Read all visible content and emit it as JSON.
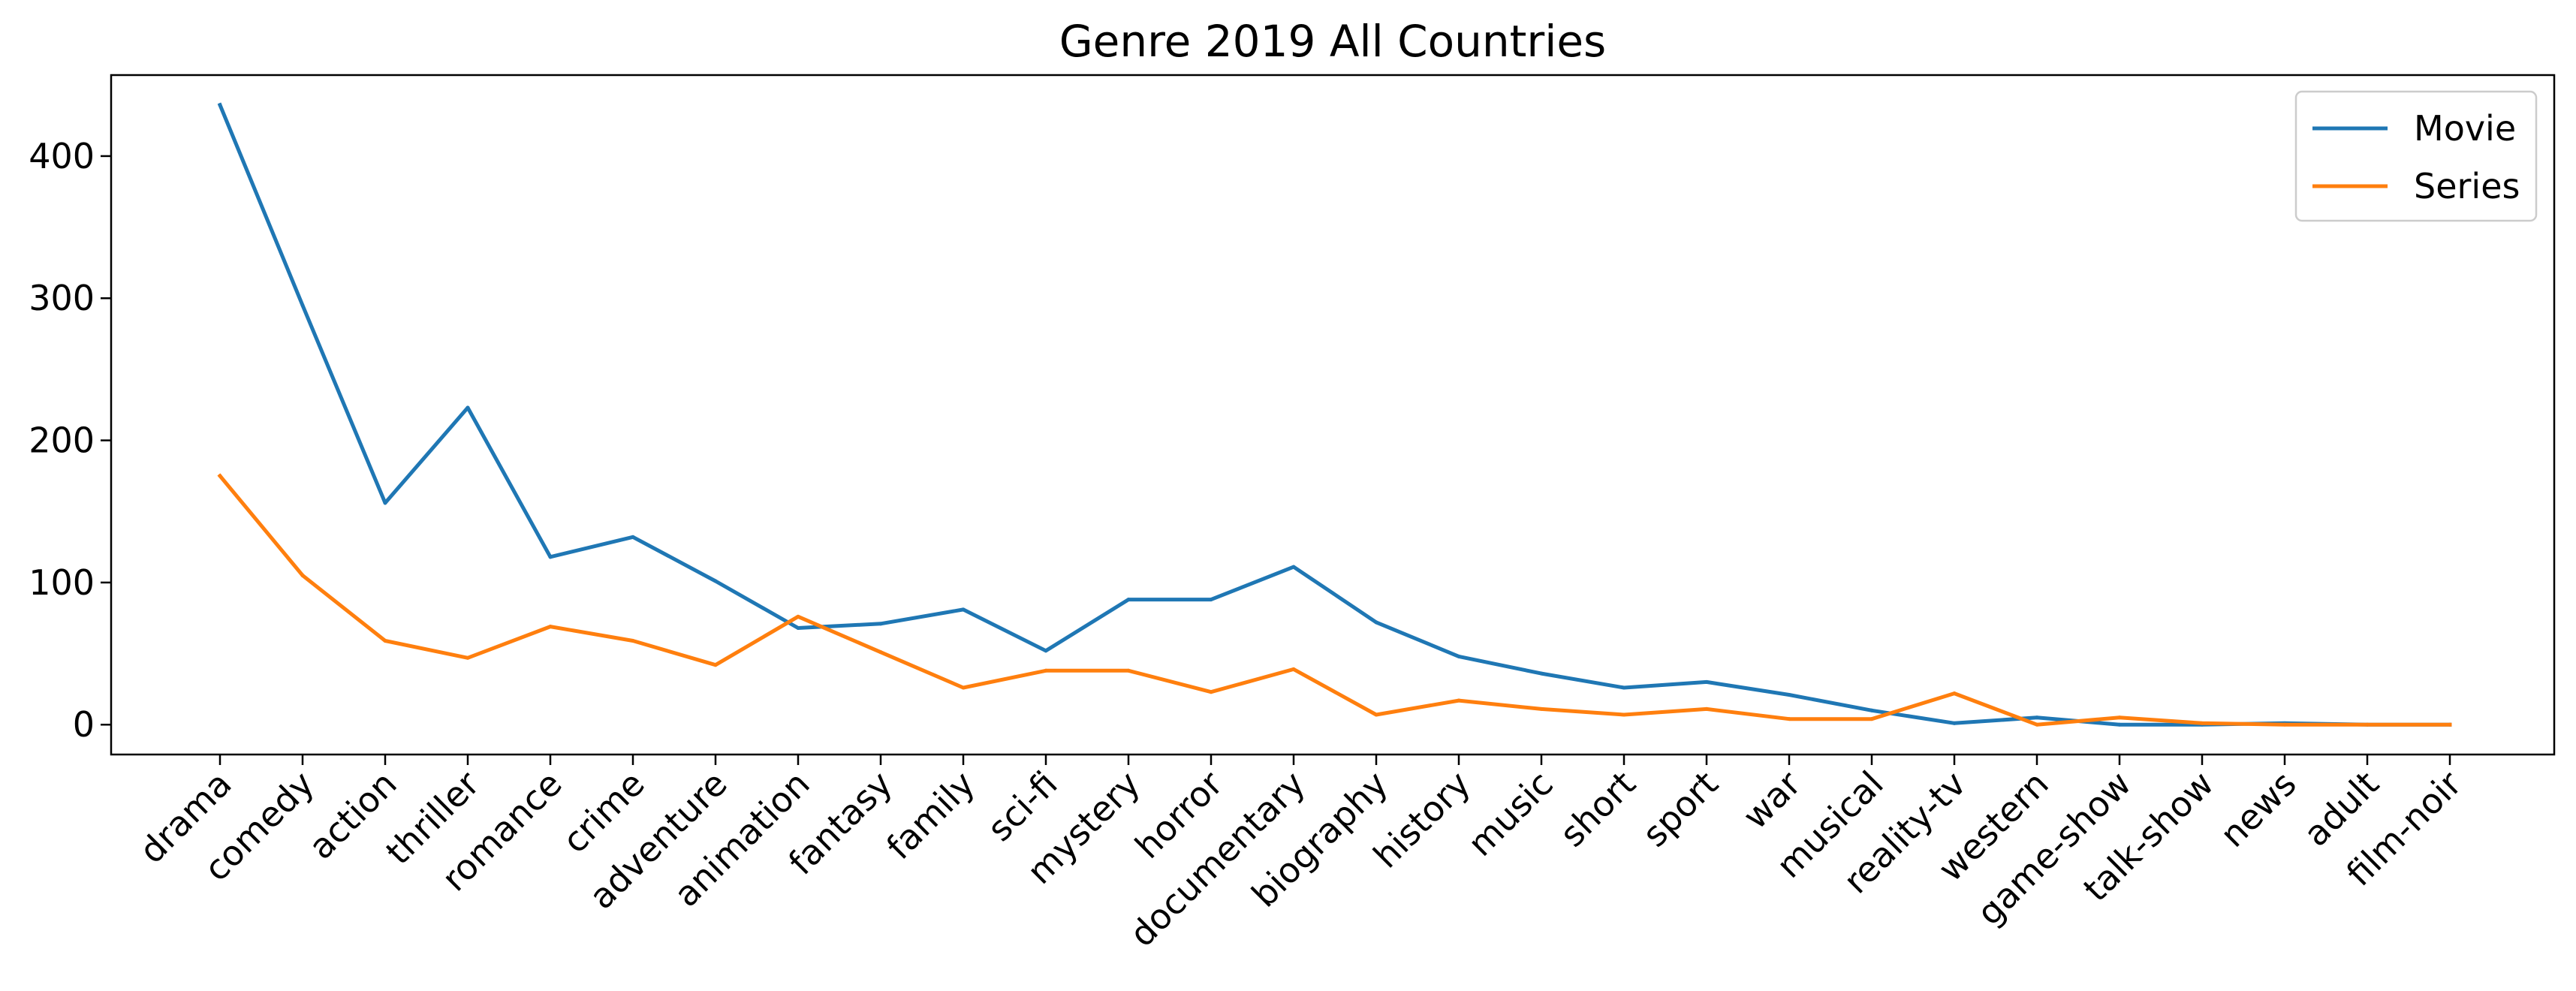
{
  "chart_data": {
    "type": "line",
    "title": "Genre 2019 All Countries",
    "xlabel": "",
    "ylabel": "",
    "categories": [
      "drama",
      "comedy",
      "action",
      "thriller",
      "romance",
      "crime",
      "adventure",
      "animation",
      "fantasy",
      "family",
      "sci-fi",
      "mystery",
      "horror",
      "documentary",
      "biography",
      "history",
      "music",
      "short",
      "sport",
      "war",
      "musical",
      "reality-tv",
      "western",
      "game-show",
      "talk-show",
      "news",
      "adult",
      "film-noir"
    ],
    "series": [
      {
        "name": "Movie",
        "color": "#1f77b4",
        "values": [
          436,
          295,
          156,
          223,
          118,
          132,
          101,
          68,
          71,
          81,
          52,
          88,
          88,
          111,
          72,
          48,
          36,
          26,
          30,
          21,
          10,
          1,
          5,
          0,
          0,
          1,
          0,
          0
        ]
      },
      {
        "name": "Series",
        "color": "#ff7f0e",
        "values": [
          175,
          105,
          59,
          47,
          69,
          59,
          42,
          76,
          51,
          26,
          38,
          38,
          23,
          39,
          7,
          17,
          11,
          7,
          11,
          4,
          4,
          22,
          0,
          5,
          1,
          0,
          0,
          0
        ]
      }
    ],
    "ylim": [
      -21,
      457
    ],
    "yticks": [
      0,
      100,
      200,
      300,
      400
    ],
    "grid": false,
    "legend": "upper-right"
  }
}
